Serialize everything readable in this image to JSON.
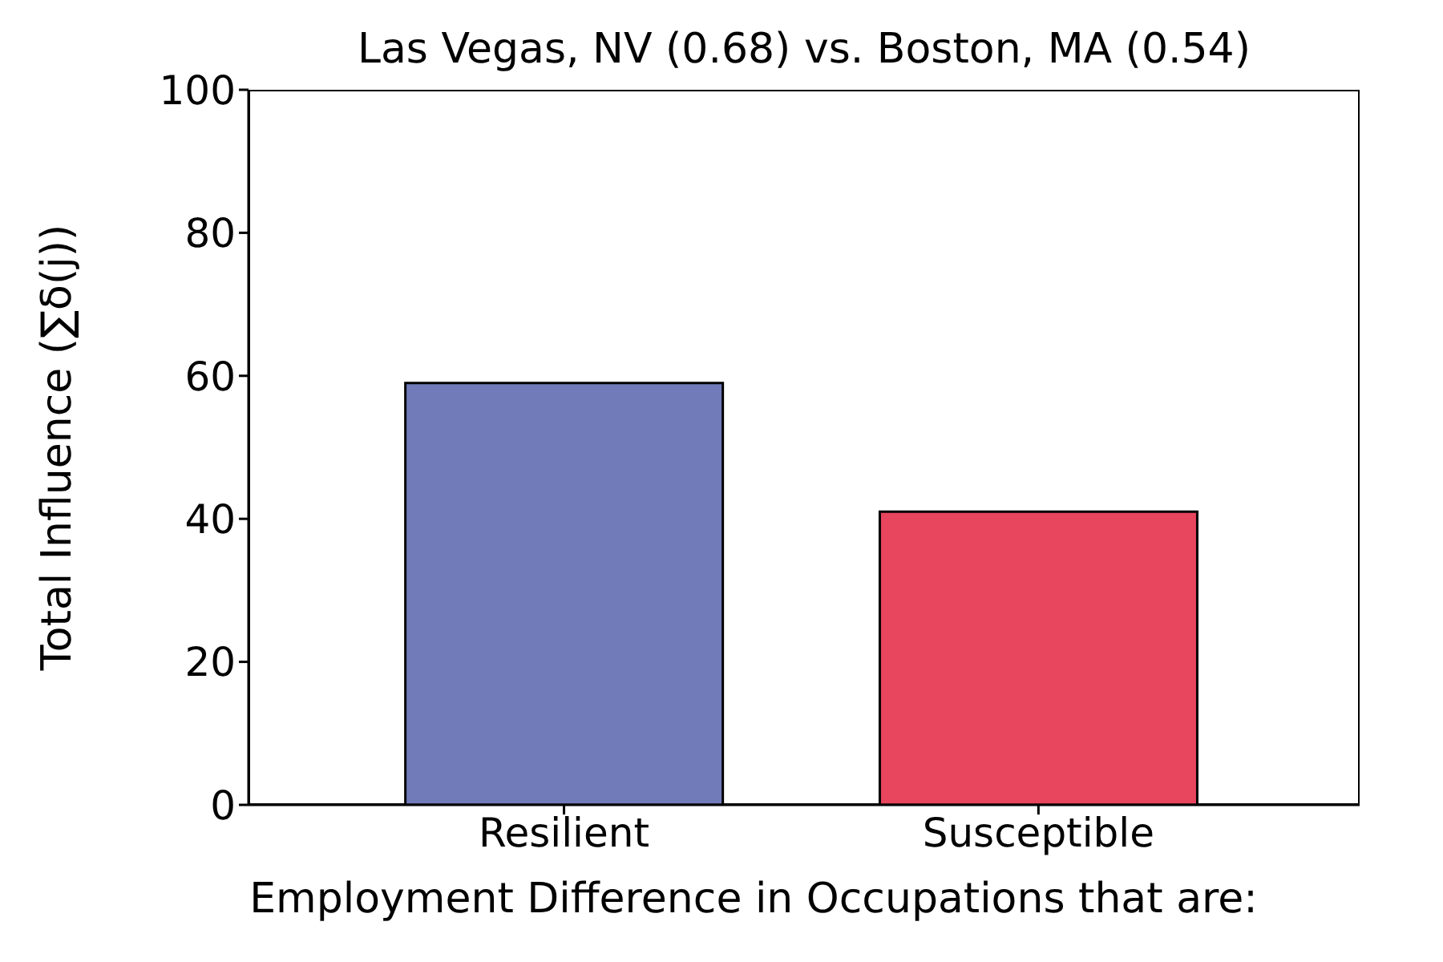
{
  "chart_data": {
    "type": "bar",
    "title": "Las Vegas, NV (0.68) vs. Boston, MA (0.54)",
    "xlabel": "Employment Difference in Occupations that are:",
    "ylabel": "Total Influence (∑δ(j))",
    "categories": [
      "Resilient",
      "Susceptible"
    ],
    "values": [
      59,
      41
    ],
    "colors": [
      "#717bb9",
      "#e8455e"
    ],
    "ylim": [
      0,
      100
    ],
    "yticks": [
      0,
      20,
      40,
      60,
      80,
      100
    ],
    "grid": false
  }
}
